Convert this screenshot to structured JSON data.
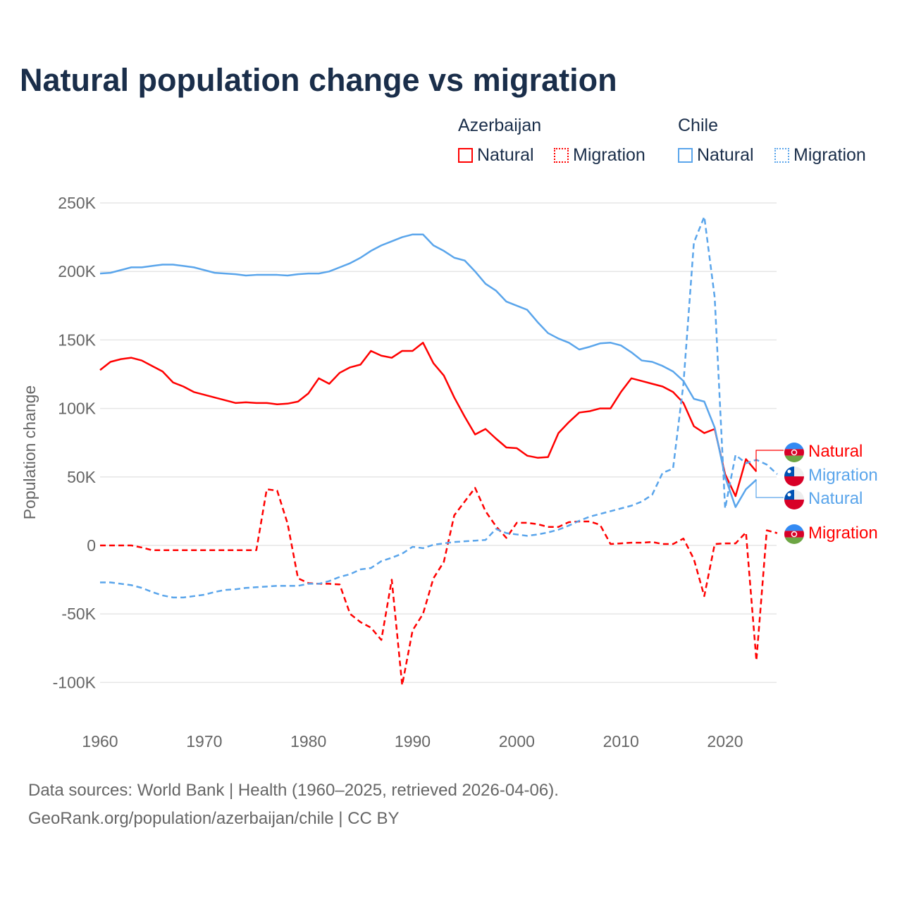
{
  "title": "Natural population change vs migration",
  "legend": {
    "groups": [
      {
        "name": "Azerbaijan",
        "color": "#ff0000",
        "items": [
          {
            "label": "Natural",
            "style": "solid"
          },
          {
            "label": "Migration",
            "style": "dotted"
          }
        ]
      },
      {
        "name": "Chile",
        "color": "#5aa5eb",
        "items": [
          {
            "label": "Natural",
            "style": "solid"
          },
          {
            "label": "Migration",
            "style": "dotted"
          }
        ]
      }
    ]
  },
  "footer": {
    "line1": "Data sources: World Bank | Health (1960–2025, retrieved 2026-04-06).",
    "line2": "GeoRank.org/population/azerbaijan/chile | CC BY"
  },
  "chart_data": {
    "type": "line",
    "title": "Natural population change vs migration",
    "ylabel": "Population change",
    "xlabel": "",
    "xlim": [
      1960,
      2025
    ],
    "ylim": [
      -100000,
      250000
    ],
    "xticks": [
      1960,
      1970,
      1980,
      1990,
      2000,
      2010,
      2020
    ],
    "xtick_labels": [
      "1960",
      "1970",
      "1980",
      "1990",
      "2000",
      "2010",
      "2020"
    ],
    "yticks": [
      -100000,
      -50000,
      0,
      50000,
      100000,
      150000,
      200000,
      250000
    ],
    "ytick_labels": [
      "-100K",
      "-50K",
      "0",
      "50K",
      "100K",
      "150K",
      "200K",
      "250K"
    ],
    "grid": true,
    "legend_position": "top-right",
    "series": [
      {
        "name": "Azerbaijan Natural",
        "country": "Azerbaijan",
        "kind": "Natural",
        "end_label": "Natural",
        "color": "#ff0000",
        "dash": false,
        "start": 1960,
        "values": [
          128,
          134,
          136,
          137,
          135,
          131,
          127,
          119,
          116,
          112,
          110,
          108,
          106,
          104,
          104.5,
          104,
          104,
          103,
          103.5,
          105,
          111,
          122,
          118,
          126,
          130,
          132,
          142,
          138.5,
          137,
          142,
          142,
          148,
          133,
          124,
          108,
          94,
          81,
          85,
          78,
          71.5,
          71,
          65.5,
          64,
          64.5,
          82,
          90,
          97,
          98,
          100,
          100,
          112,
          122,
          120,
          118,
          116,
          112,
          104,
          87,
          82,
          85,
          52,
          36,
          63,
          54
        ]
      },
      {
        "name": "Azerbaijan Migration",
        "country": "Azerbaijan",
        "kind": "Migration",
        "end_label": "Migration",
        "color": "#ff0000",
        "dash": true,
        "start": 1960,
        "values": [
          0,
          0,
          0,
          0,
          -1.5,
          -3.5,
          -3.5,
          -3.5,
          -3.5,
          -3.5,
          -3.5,
          -3.5,
          -3.5,
          -3.5,
          -3.5,
          -3.5,
          41,
          40,
          16,
          -24,
          -27.5,
          -28,
          -28,
          -28.5,
          -50,
          -56,
          -60,
          -69,
          -25,
          -102,
          -62,
          -50,
          -24,
          -12,
          22,
          32,
          42,
          25,
          14,
          5.5,
          16.5,
          16.5,
          15.5,
          13.5,
          13.5,
          17,
          17.5,
          17.5,
          15,
          1,
          1.5,
          2,
          2,
          2.5,
          1,
          1,
          5,
          -10,
          -37,
          1,
          1.5,
          1.5,
          9.5,
          -84,
          11,
          9
        ]
      },
      {
        "name": "Chile Natural",
        "country": "Chile",
        "kind": "Natural",
        "end_label": "Natural",
        "color": "#5aa5eb",
        "dash": false,
        "start": 1960,
        "values": [
          198.5,
          199,
          201,
          203,
          203,
          204,
          205,
          205,
          204,
          203,
          201,
          199,
          198.5,
          198,
          197,
          197.5,
          197.5,
          197.5,
          197,
          198,
          198.5,
          198.5,
          200,
          203,
          206,
          210,
          215,
          219,
          222,
          225,
          227,
          227,
          219,
          215,
          210,
          208,
          200,
          191,
          186,
          178,
          175,
          172,
          163,
          155,
          151,
          148,
          143,
          145,
          147.5,
          148,
          146,
          141,
          135,
          134,
          131,
          127,
          120,
          107,
          105,
          86,
          50,
          28,
          41,
          48
        ]
      },
      {
        "name": "Chile Migration",
        "country": "Chile",
        "kind": "Migration",
        "end_label": "Migration",
        "color": "#5aa5eb",
        "dash": true,
        "start": 1960,
        "values": [
          -27,
          -27,
          -28,
          -29,
          -31,
          -34,
          -36.5,
          -38,
          -38,
          -37,
          -36,
          -34,
          -32.5,
          -32,
          -31,
          -30.5,
          -30,
          -29.5,
          -29.5,
          -29.5,
          -28,
          -28,
          -26,
          -23,
          -21,
          -17.5,
          -16.5,
          -11.5,
          -9,
          -6,
          -1,
          -2,
          0.5,
          1.5,
          2.5,
          3,
          3.5,
          4,
          12,
          9,
          8,
          7,
          8,
          9.5,
          11.5,
          14.5,
          18,
          21,
          23,
          25,
          27,
          29,
          32,
          37,
          53,
          56,
          118,
          221,
          240,
          181,
          27,
          66,
          60,
          62.5,
          59,
          52
        ]
      }
    ],
    "value_unit": "thousands"
  }
}
